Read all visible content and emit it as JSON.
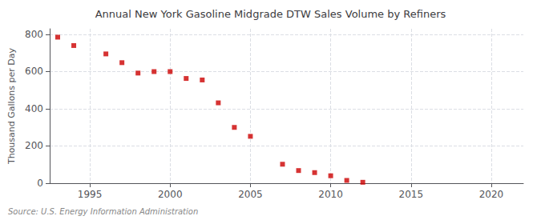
{
  "chart_data": {
    "type": "scatter",
    "title": "Annual New York Gasoline Midgrade DTW Sales Volume by Refiners",
    "ylabel": "Thousand Gallons per Day",
    "annotation": "Source: U.S. Energy Information Administration",
    "x": [
      1993,
      1994,
      1996,
      1997,
      1998,
      1999,
      2000,
      2001,
      2002,
      2003,
      2004,
      2005,
      2007,
      2008,
      2009,
      2010,
      2011,
      2012
    ],
    "values": [
      785,
      740,
      695,
      648,
      592,
      600,
      600,
      563,
      555,
      432,
      300,
      252,
      102,
      68,
      57,
      40,
      15,
      5
    ],
    "color": "#cc0000",
    "marker": "square",
    "xlim": [
      1992.5,
      2022
    ],
    "xticks": [
      1995,
      2000,
      2005,
      2010,
      2015,
      2020
    ],
    "ylim": [
      0,
      830
    ],
    "yticks": [
      0,
      200,
      400,
      600,
      800
    ],
    "grid": true
  }
}
